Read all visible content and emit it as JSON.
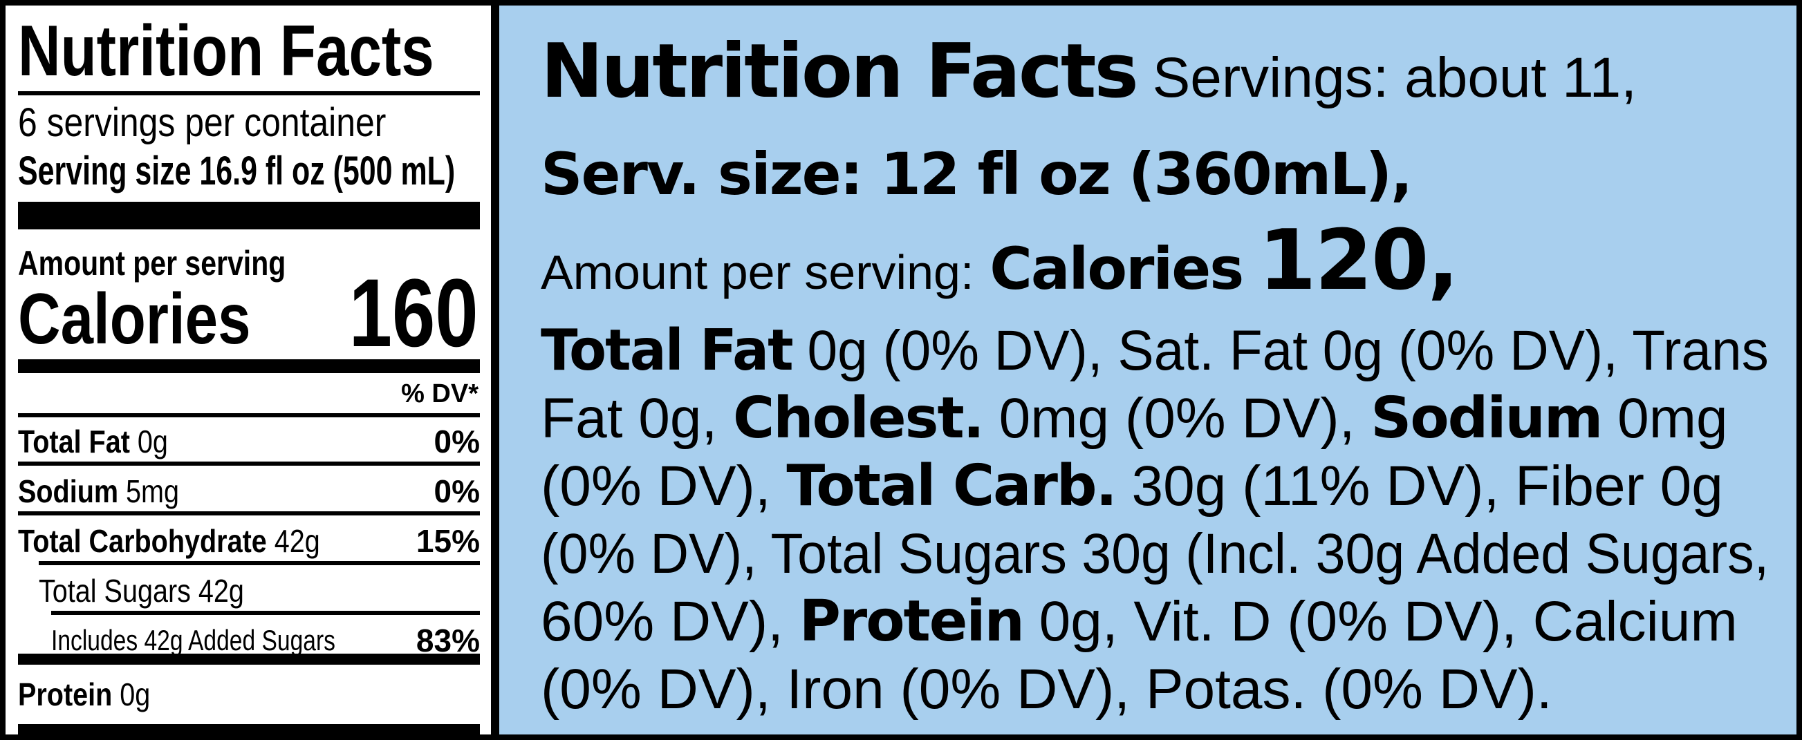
{
  "left_label": {
    "title": "Nutrition Facts",
    "servings_per_container": "6 servings per container",
    "serving_size_label": "Serving size",
    "serving_size_value": "16.9 fl oz (500 mL)",
    "amount_per_serving": "Amount per serving",
    "calories_label": "Calories",
    "calories_value": "160",
    "dv_header": "% DV*",
    "rows": [
      {
        "name": "Total Fat",
        "amount": "0g",
        "dv": "0%"
      },
      {
        "name": "Sodium",
        "amount": "5mg",
        "dv": "0%"
      },
      {
        "name": "Total Carbohydrate",
        "amount": "42g",
        "dv": "15%"
      },
      {
        "name": "Total Sugars 42g",
        "amount": "",
        "dv": ""
      },
      {
        "name": "Includes 42g Added Sugars",
        "amount": "",
        "dv": "83%"
      },
      {
        "name": "Protein",
        "amount": "0g",
        "dv": ""
      }
    ]
  },
  "right_label": {
    "title": "Nutrition Facts",
    "servings": "Servings: about 11,",
    "serv_size": "Serv. size: 12 fl oz (360mL),",
    "amount_per_serving": "Amount per serving:",
    "calories_label": "Calories",
    "calories_value": "120,",
    "line1": {
      "b1": "Total Fat",
      "t1": " 0g (0% DV), Sat. Fat 0g (0% DV), Trans"
    },
    "line2": {
      "t0": "Fat 0g, ",
      "b1": "Cholest.",
      "t1": " 0mg (0% DV), ",
      "b2": "Sodium",
      "t2": " 0mg"
    },
    "line3": {
      "t0": "(0% DV), ",
      "b1": "Total Carb.",
      "t1": " 30g (11% DV), Fiber 0g"
    },
    "line4": {
      "t0": "(0% DV), Total Sugars 30g (Incl. 30g Added Sugars,"
    },
    "line5": {
      "t0": "60% DV), ",
      "b1": "Protein",
      "t1": " 0g, Vit. D (0% DV), Calcium"
    },
    "line6": {
      "t0": "(0% DV), Iron (0% DV), Potas. (0% DV)."
    }
  },
  "colors": {
    "right_background": "#a8cfee",
    "border": "#000000"
  }
}
